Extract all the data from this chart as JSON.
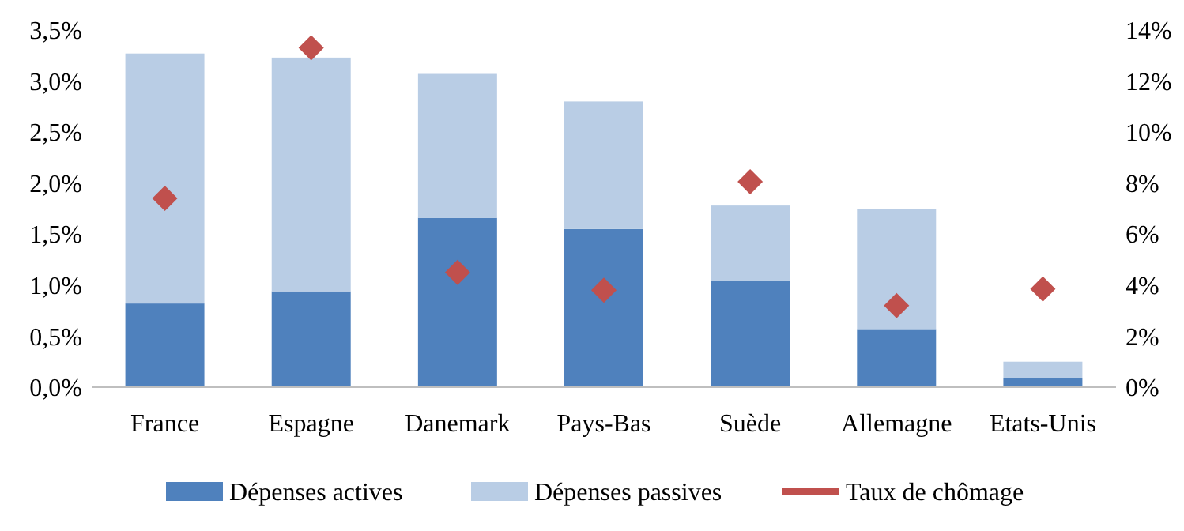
{
  "chart_data": {
    "type": "bar",
    "stacked": true,
    "categories": [
      "France",
      "Espagne",
      "Danemark",
      "Pays-Bas",
      "Suède",
      "Allemagne",
      "Etats-Unis"
    ],
    "series": [
      {
        "name": "Dépenses actives",
        "color": "#4f81bd",
        "values": [
          0.82,
          0.94,
          1.66,
          1.55,
          1.04,
          0.57,
          0.09
        ]
      },
      {
        "name": "Dépenses passives",
        "color": "#b9cde5",
        "values": [
          2.45,
          2.29,
          1.41,
          1.25,
          0.74,
          1.18,
          0.16
        ]
      },
      {
        "name": "Taux de chômage",
        "type": "scatter",
        "axis": "y2",
        "marker": "diamond",
        "color": "#c0504d",
        "values": [
          7.4,
          13.3,
          4.5,
          3.8,
          8.05,
          3.2,
          3.85
        ]
      }
    ],
    "ylim": [
      0,
      3.5
    ],
    "yticks": [
      {
        "value": 0,
        "label": "0,0%"
      },
      {
        "value": 0.5,
        "label": "0,5%"
      },
      {
        "value": 1,
        "label": "1,0%"
      },
      {
        "value": 1.5,
        "label": "1,5%"
      },
      {
        "value": 2,
        "label": "2,0%"
      },
      {
        "value": 2.5,
        "label": "2,5%"
      },
      {
        "value": 3,
        "label": "3,0%"
      },
      {
        "value": 3.5,
        "label": "3,5%"
      }
    ],
    "y2lim": [
      0,
      14
    ],
    "y2ticks": [
      {
        "value": 0,
        "label": "0%"
      },
      {
        "value": 2,
        "label": "2%"
      },
      {
        "value": 4,
        "label": "4%"
      },
      {
        "value": 6,
        "label": "6%"
      },
      {
        "value": 8,
        "label": "8%"
      },
      {
        "value": 10,
        "label": "10%"
      },
      {
        "value": 12,
        "label": "12%"
      },
      {
        "value": 14,
        "label": "14%"
      }
    ],
    "legend": "bottom",
    "grid": false
  }
}
